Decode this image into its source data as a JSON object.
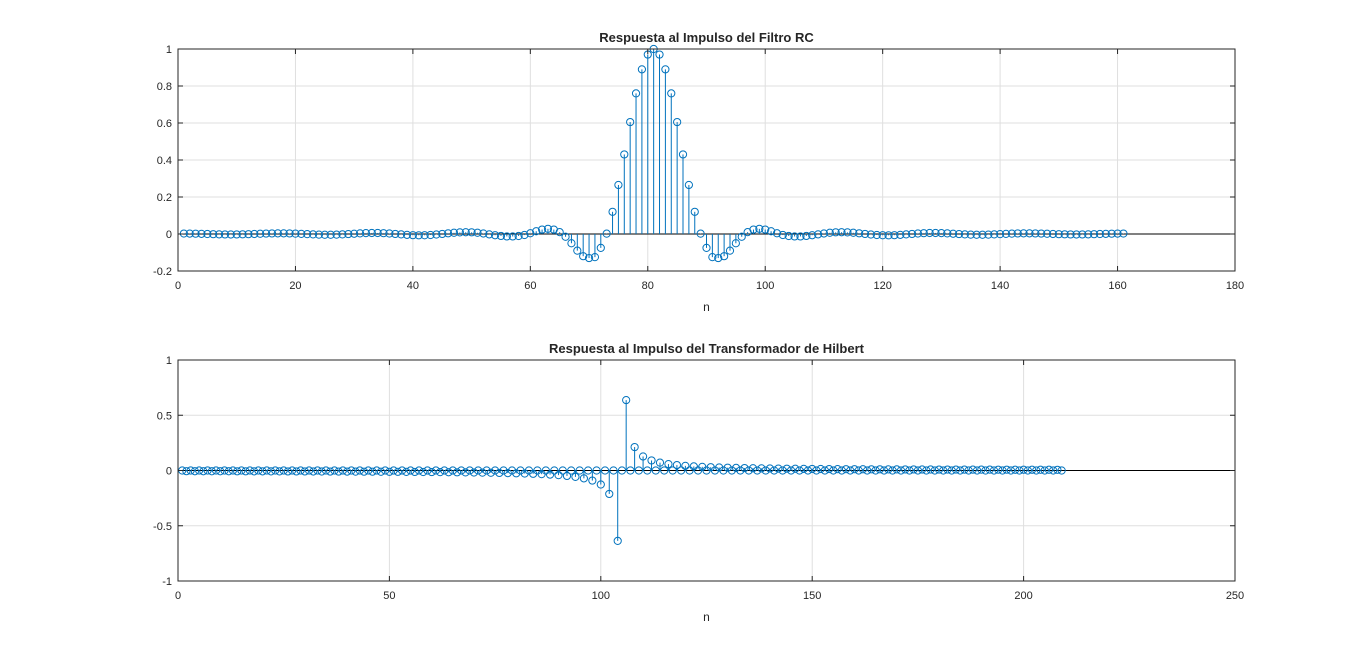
{
  "figure": {
    "background": "#ffffff",
    "stem_color": "#0072bd",
    "grid_color": "#dfdfdf",
    "axis_color": "#262626"
  },
  "chart_data": [
    {
      "type": "stem",
      "title": "Respuesta al Impulso del Filtro RC",
      "xlabel": "n",
      "ylabel": "",
      "xlim": [
        0,
        180
      ],
      "ylim": [
        -0.2,
        1
      ],
      "xticks": [
        "0",
        "20",
        "40",
        "60",
        "80",
        "100",
        "120",
        "140",
        "160",
        "180"
      ],
      "yticks": [
        "-0.2",
        "0",
        "0.2",
        "0.4",
        "0.6",
        "0.8",
        "1"
      ],
      "grid": true,
      "x_start": 1,
      "x_step": 1,
      "values": [
        0.0025,
        0.0022,
        0.0016,
        0.0008,
        -0.0001,
        -0.0011,
        -0.0019,
        -0.0024,
        -0.0026,
        -0.0024,
        -0.0018,
        -0.0009,
        0.0002,
        0.0012,
        0.0023,
        0.0031,
        0.0035,
        0.0035,
        0.003,
        0.002,
        0.0007,
        -0.0007,
        -0.0022,
        -0.0034,
        -0.0041,
        -0.0041,
        -0.0035,
        -0.0022,
        -0.0004,
        0.0015,
        0.0034,
        0.0048,
        0.0056,
        0.0055,
        0.0045,
        0.0027,
        0.0003,
        -0.0022,
        -0.0046,
        -0.0064,
        -0.0072,
        -0.0069,
        -0.0054,
        -0.0029,
        0.0003,
        0.0036,
        0.0066,
        0.0088,
        0.0096,
        0.009,
        0.0066,
        0.0028,
        -0.0019,
        -0.0066,
        -0.0106,
        -0.0131,
        -0.0133,
        -0.0108,
        -0.0056,
        0.0039,
        0.015,
        0.024,
        0.028,
        0.024,
        0.01,
        -0.015,
        -0.05,
        -0.09,
        -0.12,
        -0.13,
        -0.125,
        -0.075,
        0.002,
        0.12,
        0.265,
        0.43,
        0.605,
        0.76,
        0.89,
        0.97,
        1.0,
        0.97,
        0.89,
        0.76,
        0.605,
        0.43,
        0.265,
        0.12,
        0.002,
        -0.075,
        -0.125,
        -0.13,
        -0.12,
        -0.09,
        -0.05,
        -0.015,
        0.01,
        0.024,
        0.028,
        0.024,
        0.015,
        0.0039,
        -0.0056,
        -0.0108,
        -0.0133,
        -0.0131,
        -0.0106,
        -0.0066,
        -0.0019,
        0.0028,
        0.0066,
        0.009,
        0.0096,
        0.0088,
        0.0066,
        0.0036,
        0.0003,
        -0.0029,
        -0.0054,
        -0.0069,
        -0.0072,
        -0.0064,
        -0.0046,
        -0.0022,
        0.0003,
        0.0027,
        0.0045,
        0.0055,
        0.0056,
        0.0048,
        0.0034,
        0.0015,
        -0.0004,
        -0.0022,
        -0.0035,
        -0.0041,
        -0.0041,
        -0.0034,
        -0.0022,
        -0.0007,
        0.0007,
        0.002,
        0.003,
        0.0035,
        0.0035,
        0.0031,
        0.0023,
        0.0012,
        0.0002,
        -0.0009,
        -0.0018,
        -0.0024,
        -0.0026,
        -0.0024,
        -0.0019,
        -0.0011,
        -0.0001,
        0.0008,
        0.0016,
        0.0022,
        0.0025
      ]
    },
    {
      "type": "stem",
      "title": "Respuesta al Impulso del Transformador de Hilbert",
      "xlabel": "n",
      "ylabel": "",
      "xlim": [
        0,
        250
      ],
      "ylim": [
        -1,
        1
      ],
      "xticks": [
        "0",
        "50",
        "100",
        "150",
        "200",
        "250"
      ],
      "yticks": [
        "-1",
        "-0.5",
        "0",
        "0.5",
        "1"
      ],
      "grid": true,
      "x_start": 1,
      "x_step": 1,
      "values": [
        0,
        -0.0064,
        0,
        -0.0066,
        0,
        -0.0067,
        0,
        -0.0069,
        0,
        -0.007,
        0,
        -0.0071,
        0,
        -0.0073,
        0,
        -0.0074,
        0,
        -0.0076,
        0,
        -0.0078,
        0,
        -0.0079,
        0,
        -0.0081,
        0,
        -0.0083,
        0,
        -0.0085,
        0,
        -0.0087,
        0,
        -0.0089,
        0,
        -0.0092,
        0,
        -0.0094,
        0,
        -0.0097,
        0,
        -0.01,
        0,
        -0.0103,
        0,
        -0.0106,
        0,
        -0.0109,
        0,
        -0.0113,
        0,
        -0.0117,
        0,
        -0.0121,
        0,
        -0.0126,
        0,
        -0.0131,
        0,
        -0.0136,
        0,
        -0.0142,
        0,
        -0.0149,
        0,
        -0.0156,
        0,
        -0.0164,
        0,
        -0.0172,
        0,
        -0.0182,
        0,
        -0.0193,
        0,
        -0.0205,
        0,
        -0.0219,
        0,
        -0.0235,
        0,
        -0.0253,
        0,
        -0.0274,
        0,
        -0.03,
        0,
        -0.0331,
        0,
        -0.037,
        0,
        -0.042,
        0,
        -0.049,
        0,
        -0.058,
        0,
        -0.071,
        0,
        -0.091,
        0,
        -0.127,
        0,
        -0.212,
        0,
        -0.637,
        0,
        0.637,
        0,
        0.212,
        0,
        0.127,
        0,
        0.091,
        0,
        0.071,
        0,
        0.058,
        0,
        0.049,
        0,
        0.042,
        0,
        0.037,
        0,
        0.0331,
        0,
        0.03,
        0,
        0.0274,
        0,
        0.0253,
        0,
        0.0235,
        0,
        0.0219,
        0,
        0.0205,
        0,
        0.0193,
        0,
        0.0182,
        0,
        0.0172,
        0,
        0.0164,
        0,
        0.0156,
        0,
        0.0149,
        0,
        0.0142,
        0,
        0.0136,
        0,
        0.0131,
        0,
        0.0126,
        0,
        0.0121,
        0,
        0.0117,
        0,
        0.0113,
        0,
        0.0109,
        0,
        0.0106,
        0,
        0.0103,
        0,
        0.01,
        0,
        0.0097,
        0,
        0.0094,
        0,
        0.0092,
        0,
        0.0089,
        0,
        0.0087,
        0,
        0.0085,
        0,
        0.0083,
        0,
        0.0081,
        0,
        0.0079,
        0,
        0.0078,
        0,
        0.0076,
        0,
        0.0074,
        0,
        0.0073,
        0,
        0.0071,
        0,
        0.007,
        0,
        0.0069,
        0,
        0.0067,
        0,
        0.0066,
        0,
        0.0064,
        0
      ]
    }
  ]
}
